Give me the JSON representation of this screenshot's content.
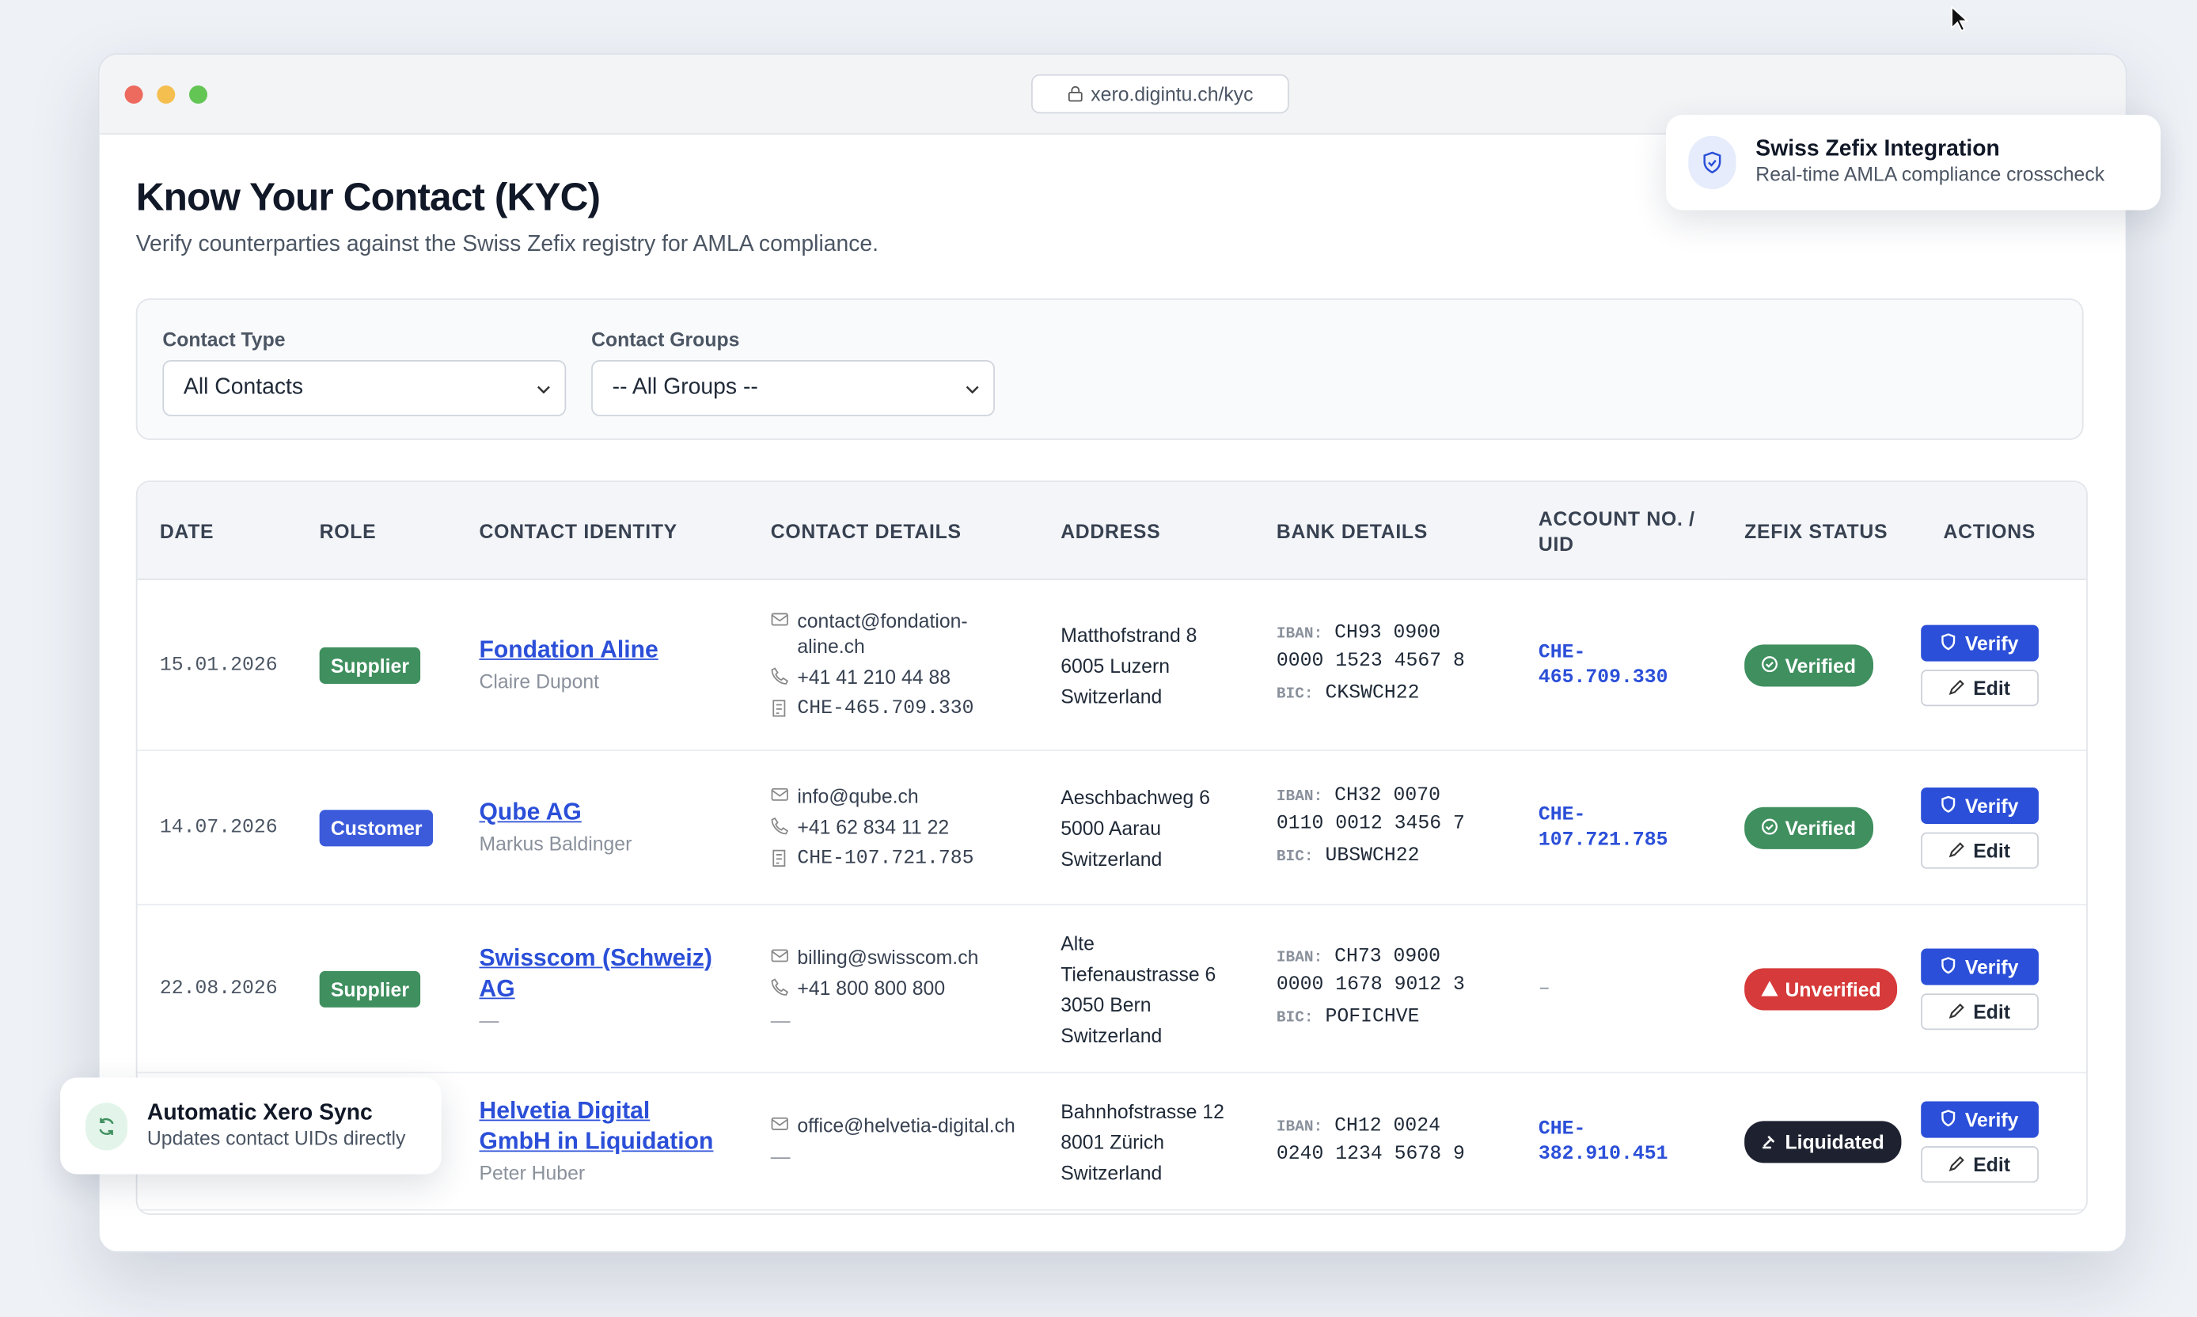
{
  "browser": {
    "url": "xero.digintu.ch/kyc"
  },
  "header": {
    "title": "Know Your Contact (KYC)",
    "subtitle": "Verify counterparties against the Swiss Zefix registry for AMLA compliance."
  },
  "filters": [
    {
      "label": "Contact Type",
      "value": "All Contacts"
    },
    {
      "label": "Contact Groups",
      "value": "-- All Groups --"
    }
  ],
  "table": {
    "columns": [
      "DATE",
      "ROLE",
      "CONTACT IDENTITY",
      "CONTACT DETAILS",
      "ADDRESS",
      "BANK DETAILS",
      "ACCOUNT NO. / UID",
      "ZEFIX STATUS",
      "ACTIONS"
    ],
    "rows": [
      {
        "date": "15.01.2026",
        "role": "Supplier",
        "role_color": "#3f8f5f",
        "name": "Fondation Aline",
        "person": "Claire Dupont",
        "details": [
          {
            "icon": "mail",
            "text": "contact@fondation-aline.ch"
          },
          {
            "icon": "phone",
            "text": "+41 41 210 44 88"
          },
          {
            "icon": "uid",
            "text": "CHE-465.709.330"
          }
        ],
        "address": [
          "Matthofstrand 8",
          "6005 Luzern",
          "Switzerland"
        ],
        "iban_label": "IBAN:",
        "iban": "CH93 0900 0000 1523 4567 8",
        "bic_label": "BIC:",
        "bic": "CKSWCH22",
        "account": "CHE-465.709.330",
        "status": "Verified",
        "status_color": "#3f8f5f"
      },
      {
        "date": "14.07.2026",
        "role": "Customer",
        "role_color": "#3b5bdb",
        "name": "Qube AG",
        "person": "Markus Baldinger",
        "details": [
          {
            "icon": "mail",
            "text": "info@qube.ch"
          },
          {
            "icon": "phone",
            "text": "+41 62 834 11 22"
          },
          {
            "icon": "uid",
            "text": "CHE-107.721.785"
          }
        ],
        "address": [
          "Aeschbachweg 6",
          "5000 Aarau",
          "Switzerland"
        ],
        "iban_label": "IBAN:",
        "iban": "CH32 0070 0110 0012 3456 7",
        "bic_label": "BIC:",
        "bic": "UBSWCH22",
        "account": "CHE-107.721.785",
        "status": "Verified",
        "status_color": "#3f8f5f"
      },
      {
        "date": "22.08.2026",
        "role": "Supplier",
        "role_color": "#3f8f5f",
        "name": "Swisscom (Schweiz) AG",
        "person": "—",
        "details": [
          {
            "icon": "mail",
            "text": "billing@swisscom.ch"
          },
          {
            "icon": "phone",
            "text": "+41 800 800 800"
          },
          {
            "icon": "none",
            "text": "—"
          }
        ],
        "address": [
          "Alte Tiefenaustrasse 6",
          "3050 Bern",
          "Switzerland"
        ],
        "iban_label": "IBAN:",
        "iban": "CH73 0900 0000 1678 9012 3",
        "bic_label": "BIC:",
        "bic": "POFICHVE",
        "account": "–",
        "status": "Unverified",
        "status_color": "#d63a3a"
      },
      {
        "date": "",
        "role": "",
        "role_color": "#3f8f5f",
        "name": "Helvetia Digital GmbH in Liquidation",
        "person": "Peter Huber",
        "details": [
          {
            "icon": "mail",
            "text": "office@helvetia-digital.ch"
          },
          {
            "icon": "none",
            "text": "—"
          }
        ],
        "address": [
          "Bahnhofstrasse 12",
          "8001 Zürich",
          "Switzerland"
        ],
        "iban_label": "IBAN:",
        "iban": "CH12 0024 0240 1234 5678 9",
        "bic_label": "",
        "bic": "",
        "account": "CHE-382.910.451",
        "status": "Liquidated",
        "status_color": "#1e2230"
      }
    ]
  },
  "actions": {
    "verify": "Verify",
    "edit": "Edit"
  },
  "toasts": [
    {
      "title": "Swiss Zefix Integration",
      "text": "Real-time AMLA compliance crosscheck"
    },
    {
      "title": "Automatic Xero Sync",
      "text": "Updates contact UIDs directly"
    }
  ]
}
